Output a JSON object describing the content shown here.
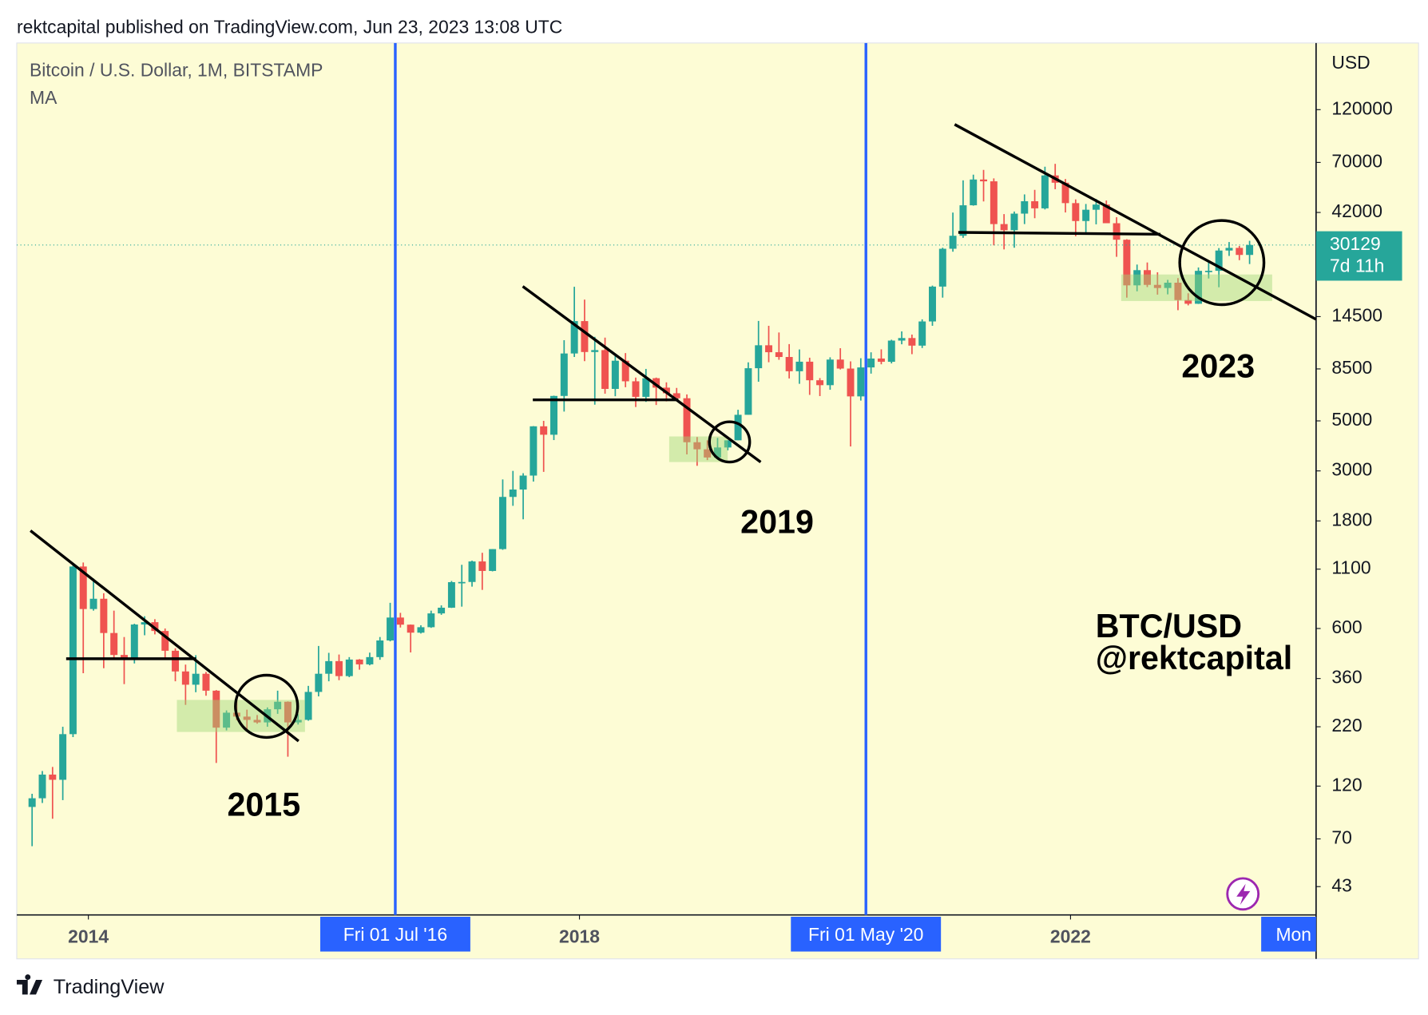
{
  "header": {
    "publisher": "rektcapital published on TradingView.com, Jun 23, 2023 13:08 UTC"
  },
  "footer": {
    "brand": "TradingView"
  },
  "chart_data": {
    "type": "candlestick",
    "title": "Bitcoin / U.S. Dollar, 1M, BITSTAMP",
    "indicator": "MA",
    "y_axis_label": "USD",
    "log_scale": true,
    "grid": false,
    "up_color": "#26a69a",
    "down_color": "#ef5350",
    "marker_color": "#2962ff",
    "x": [
      "2013-07",
      "2013-08",
      "2013-09",
      "2013-10",
      "2013-11",
      "2013-12",
      "2014-01",
      "2014-02",
      "2014-03",
      "2014-04",
      "2014-05",
      "2014-06",
      "2014-07",
      "2014-08",
      "2014-09",
      "2014-10",
      "2014-11",
      "2014-12",
      "2015-01",
      "2015-02",
      "2015-03",
      "2015-04",
      "2015-05",
      "2015-06",
      "2015-07",
      "2015-08",
      "2015-09",
      "2015-10",
      "2015-11",
      "2015-12",
      "2016-01",
      "2016-02",
      "2016-03",
      "2016-04",
      "2016-05",
      "2016-06",
      "2016-07",
      "2016-08",
      "2016-09",
      "2016-10",
      "2016-11",
      "2016-12",
      "2017-01",
      "2017-02",
      "2017-03",
      "2017-04",
      "2017-05",
      "2017-06",
      "2017-07",
      "2017-08",
      "2017-09",
      "2017-10",
      "2017-11",
      "2017-12",
      "2018-01",
      "2018-02",
      "2018-03",
      "2018-04",
      "2018-05",
      "2018-06",
      "2018-07",
      "2018-08",
      "2018-09",
      "2018-10",
      "2018-11",
      "2018-12",
      "2019-01",
      "2019-02",
      "2019-03",
      "2019-04",
      "2019-05",
      "2019-06",
      "2019-07",
      "2019-08",
      "2019-09",
      "2019-10",
      "2019-11",
      "2019-12",
      "2020-01",
      "2020-02",
      "2020-03",
      "2020-04",
      "2020-05",
      "2020-06",
      "2020-07",
      "2020-08",
      "2020-09",
      "2020-10",
      "2020-11",
      "2020-12",
      "2021-01",
      "2021-02",
      "2021-03",
      "2021-04",
      "2021-05",
      "2021-06",
      "2021-07",
      "2021-08",
      "2021-09",
      "2021-10",
      "2021-11",
      "2021-12",
      "2022-01",
      "2022-02",
      "2022-03",
      "2022-04",
      "2022-05",
      "2022-06",
      "2022-07",
      "2022-08",
      "2022-09",
      "2022-10",
      "2022-11",
      "2022-12",
      "2023-01",
      "2023-02",
      "2023-03",
      "2023-04",
      "2023-05",
      "2023-06"
    ],
    "open": [
      97,
      106,
      135,
      128,
      204,
      1130,
      732,
      813,
      573,
      458,
      445,
      625,
      640,
      585,
      478,
      387,
      338,
      378,
      318,
      218,
      254,
      244,
      236,
      230,
      263,
      284,
      230,
      236,
      314,
      378,
      430,
      369,
      437,
      416,
      448,
      531,
      671,
      624,
      575,
      608,
      700,
      742,
      963,
      965,
      1190,
      1080,
      1350,
      2300,
      2480,
      2860,
      4730,
      4340,
      6450,
      9950,
      13850,
      10100,
      10300,
      6930,
      9240,
      7490,
      6390,
      7730,
      7020,
      6630,
      6300,
      4020,
      3740,
      3440,
      3810,
      4100,
      5320,
      8560,
      10820,
      10080,
      9600,
      8300,
      9150,
      7570,
      7200,
      9350,
      8530,
      6420,
      8630,
      9450,
      9140,
      11350,
      11650,
      10780,
      13800,
      19700,
      28990,
      33110,
      45190,
      58800,
      57720,
      37300,
      35040,
      41500,
      47100,
      43800,
      61300,
      56900,
      46200,
      38480,
      43180,
      45530,
      37630,
      31790,
      19950,
      23300,
      20050,
      19420,
      20500,
      17170,
      16530,
      23140,
      23150,
      28470,
      29250,
      27220
    ],
    "high": [
      111,
      140,
      146,
      220,
      1163,
      1177,
      1000,
      860,
      720,
      550,
      630,
      680,
      660,
      600,
      490,
      415,
      457,
      385,
      320,
      260,
      300,
      262,
      248,
      268,
      318,
      285,
      250,
      334,
      502,
      468,
      460,
      448,
      439,
      469,
      550,
      780,
      704,
      625,
      620,
      720,
      760,
      975,
      1150,
      1200,
      1300,
      1350,
      2750,
      3000,
      2930,
      4740,
      5000,
      6470,
      11400,
      19666,
      17250,
      11800,
      11700,
      9760,
      9990,
      7780,
      8500,
      7780,
      7410,
      7000,
      6550,
      4240,
      4100,
      4200,
      4100,
      5600,
      9090,
      13880,
      13200,
      12330,
      10950,
      10370,
      9530,
      7740,
      9570,
      10500,
      9180,
      9480,
      10070,
      10380,
      11450,
      12470,
      12070,
      14100,
      19900,
      29300,
      41950,
      58300,
      61780,
      64860,
      59500,
      41300,
      42400,
      50500,
      52900,
      67000,
      69000,
      59100,
      47990,
      45800,
      48200,
      47450,
      40000,
      31970,
      24670,
      25200,
      22800,
      21100,
      21480,
      18400,
      23950,
      25250,
      29200,
      31050,
      29830,
      31440
    ],
    "low": [
      65,
      101,
      86,
      104,
      198,
      380,
      720,
      400,
      440,
      340,
      420,
      560,
      565,
      440,
      350,
      275,
      313,
      302,
      152,
      212,
      235,
      214,
      227,
      220,
      251,
      162,
      225,
      234,
      300,
      350,
      354,
      365,
      394,
      412,
      436,
      526,
      606,
      470,
      570,
      604,
      690,
      740,
      750,
      920,
      890,
      1075,
      1340,
      2100,
      1830,
      2690,
      2970,
      4110,
      5500,
      9600,
      9200,
      5900,
      6600,
      6430,
      7050,
      5760,
      6070,
      5880,
      6100,
      6200,
      3550,
      3160,
      3350,
      3380,
      3700,
      4100,
      5330,
      7460,
      9100,
      9330,
      7710,
      7300,
      6520,
      6440,
      6870,
      8450,
      3850,
      6150,
      8100,
      8910,
      8990,
      10930,
      9880,
      10520,
      13200,
      17600,
      28130,
      32400,
      45000,
      47000,
      30000,
      28800,
      29300,
      37300,
      39600,
      43300,
      53250,
      42000,
      32950,
      34300,
      37200,
      37700,
      26700,
      17600,
      18780,
      19600,
      18150,
      18200,
      15480,
      16260,
      16500,
      21400,
      19570,
      26940,
      25800,
      24800
    ],
    "close": [
      106,
      135,
      128,
      204,
      1130,
      732,
      813,
      573,
      458,
      445,
      625,
      640,
      585,
      478,
      387,
      338,
      378,
      318,
      218,
      254,
      244,
      236,
      230,
      263,
      284,
      230,
      236,
      314,
      378,
      430,
      369,
      437,
      416,
      448,
      531,
      671,
      624,
      575,
      608,
      700,
      742,
      963,
      965,
      1190,
      1080,
      1350,
      2300,
      2480,
      2860,
      4730,
      4340,
      6450,
      9950,
      13850,
      10100,
      10300,
      6930,
      9240,
      7490,
      6390,
      7730,
      7020,
      6630,
      6300,
      4020,
      3740,
      3440,
      3810,
      4100,
      5320,
      8560,
      10820,
      10080,
      9600,
      8300,
      9150,
      7570,
      7200,
      9350,
      8530,
      6420,
      8630,
      9450,
      9140,
      11350,
      11650,
      10780,
      13800,
      19700,
      28990,
      33110,
      45190,
      58800,
      57720,
      37300,
      35040,
      41500,
      47100,
      43800,
      61300,
      56900,
      46200,
      38480,
      43180,
      45530,
      37630,
      31790,
      19950,
      23300,
      20050,
      19420,
      20500,
      17170,
      16530,
      23140,
      23150,
      28470,
      29250,
      27220,
      30129
    ],
    "ylim": [
      32.2,
      237000
    ],
    "yticks": [
      43,
      70,
      120,
      220,
      360,
      600,
      1100,
      1800,
      3000,
      5000,
      8500,
      14500,
      42000,
      70000,
      120000
    ],
    "xlim": [
      "2013-06",
      "2024-01"
    ],
    "xticks": [
      {
        "value": "2014-01",
        "label": "2014"
      },
      {
        "value": "2018-01",
        "label": "2018"
      },
      {
        "value": "2022-01",
        "label": "2022"
      }
    ],
    "markers": [
      {
        "x": "2016-07",
        "label": "Fri 01 Jul '16"
      },
      {
        "x": "2020-05",
        "label": "Fri 01 May '20"
      }
    ],
    "cursor_label": "Mon",
    "last_price": 30129,
    "countdown": "7d 11h",
    "annotations": [
      "2015",
      "2019",
      "2023",
      "BTC/USD",
      "@rektcapital"
    ]
  }
}
